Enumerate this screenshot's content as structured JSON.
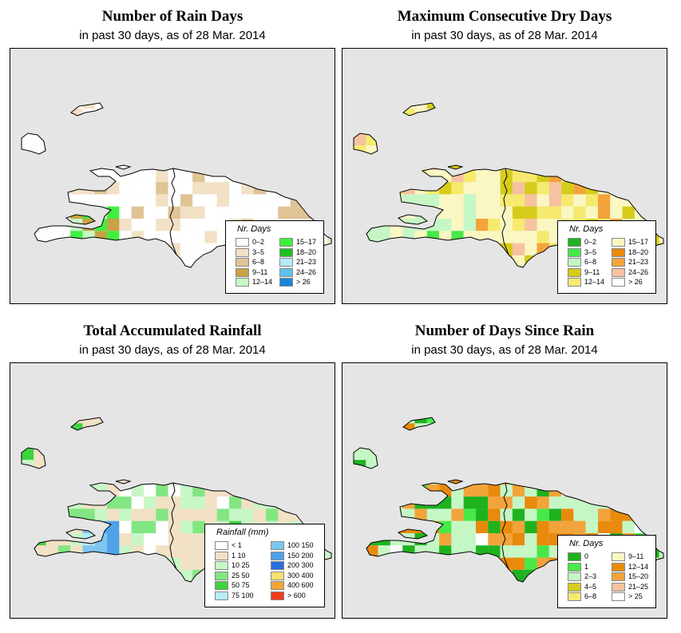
{
  "panels": [
    {
      "title": "Number of Rain Days",
      "subtitle": "in past 30 days, as of  28 Mar. 2014",
      "legend": {
        "title": "Nr. Days",
        "cols": 2,
        "items": [
          {
            "label": "0–2",
            "color": "#ffffff"
          },
          {
            "label": "3–5",
            "color": "#f2e1c5"
          },
          {
            "label": "6–8",
            "color": "#e0c495"
          },
          {
            "label": "9–11",
            "color": "#c9a245"
          },
          {
            "label": "12–14",
            "color": "#c7f7c7"
          },
          {
            "label": "15–17",
            "color": "#3ff03f"
          },
          {
            "label": "18–20",
            "color": "#1fbf1f"
          },
          {
            "label": "21–23",
            "color": "#b3ecf7"
          },
          {
            "label": "24–26",
            "color": "#5ec2ee"
          },
          {
            "label": "> 26",
            "color": "#1a86d6"
          }
        ]
      }
    },
    {
      "title": "Maximum Consecutive Dry Days",
      "subtitle": "in past 30 days, as of  28 Mar. 2014",
      "legend": {
        "title": "Nr. Days",
        "cols": 2,
        "items": [
          {
            "label": "0–2",
            "color": "#1fb21f"
          },
          {
            "label": "3–5",
            "color": "#48e848"
          },
          {
            "label": "6–8",
            "color": "#c5f7c5"
          },
          {
            "label": "9–11",
            "color": "#d6cc1a"
          },
          {
            "label": "12–14",
            "color": "#f6ea6e"
          },
          {
            "label": "15–17",
            "color": "#fbf7c2"
          },
          {
            "label": "18–20",
            "color": "#e88a0b"
          },
          {
            "label": "21–23",
            "color": "#f2a43a"
          },
          {
            "label": "24–26",
            "color": "#f7c2a0"
          },
          {
            "label": "> 26",
            "color": "#ffffff"
          }
        ]
      }
    },
    {
      "title": "Total Accumulated Rainfall",
      "subtitle": "in past 30 days, as of  28 Mar. 2014",
      "legend": {
        "title": "Rainfall (mm)",
        "cols": 2,
        "items": [
          {
            "label": "< 1",
            "color": "#ffffff"
          },
          {
            "label": "1     10",
            "color": "#f2e1c5"
          },
          {
            "label": "10    25",
            "color": "#c7f7c7"
          },
          {
            "label": "25    50",
            "color": "#82e682"
          },
          {
            "label": "50    75",
            "color": "#3fd23f"
          },
          {
            "label": "75   100",
            "color": "#b7ecf7"
          },
          {
            "label": "100   150",
            "color": "#7ec6ef"
          },
          {
            "label": "150   200",
            "color": "#4da2e8"
          },
          {
            "label": "200   300",
            "color": "#2a6ee0"
          },
          {
            "label": "300   400",
            "color": "#f7e06e"
          },
          {
            "label": "400   600",
            "color": "#f2a43a"
          },
          {
            "label": "> 600",
            "color": "#f23a1a"
          }
        ]
      }
    },
    {
      "title": "Number of Days Since Rain",
      "subtitle": "in past 30 days, as of  28 Mar. 2014",
      "legend": {
        "title": "Nr. Days",
        "cols": 2,
        "items": [
          {
            "label": "0",
            "color": "#1fb21f"
          },
          {
            "label": "1",
            "color": "#48e848"
          },
          {
            "label": "2–3",
            "color": "#c5f7c5"
          },
          {
            "label": "4–5",
            "color": "#d6cc1a"
          },
          {
            "label": "6–8",
            "color": "#f6ea6e"
          },
          {
            "label": "9–11",
            "color": "#fbf7c2"
          },
          {
            "label": "12–14",
            "color": "#e88a0b"
          },
          {
            "label": "15–20",
            "color": "#f2a43a"
          },
          {
            "label": "21–25",
            "color": "#f7c2a0"
          },
          {
            "label": "> 25",
            "color": "#ffffff"
          }
        ]
      }
    }
  ],
  "grids": [
    {
      "base": "#ffffff",
      "cells": [
        [
          4,
          1,
          1
        ],
        [
          4,
          2,
          1
        ],
        [
          0,
          2,
          1
        ],
        [
          0,
          3,
          1
        ],
        [
          14,
          5,
          1
        ],
        [
          14,
          6,
          1
        ],
        [
          14,
          7,
          1
        ],
        [
          15,
          6,
          1
        ],
        [
          16,
          6,
          1
        ],
        [
          16,
          7,
          1
        ],
        [
          17,
          6,
          1
        ],
        [
          17,
          7,
          1
        ],
        [
          19,
          7,
          1
        ],
        [
          19,
          8,
          1
        ],
        [
          20,
          8,
          1
        ],
        [
          21,
          8,
          1
        ],
        [
          18,
          8,
          1
        ],
        [
          13,
          8,
          1
        ],
        [
          11,
          8,
          1
        ],
        [
          11,
          9,
          1
        ],
        [
          10,
          9,
          1
        ],
        [
          12,
          9,
          1
        ],
        [
          8,
          10,
          1
        ],
        [
          8,
          11,
          1
        ],
        [
          7,
          10,
          1
        ],
        [
          4,
          9,
          3
        ],
        [
          4,
          10,
          3
        ],
        [
          5,
          9,
          3
        ],
        [
          5,
          10,
          3
        ],
        [
          6,
          9,
          6
        ],
        [
          6,
          10,
          7
        ],
        [
          5,
          11,
          1
        ],
        [
          6,
          11,
          1
        ],
        [
          7,
          11,
          1
        ],
        [
          3,
          11,
          1
        ],
        [
          9,
          11,
          1
        ],
        [
          10,
          11,
          1
        ],
        [
          11,
          11,
          1
        ],
        [
          9,
          12,
          1
        ],
        [
          10,
          13,
          1
        ],
        [
          10,
          14,
          1
        ],
        [
          11,
          13,
          1
        ],
        [
          2,
          12,
          1
        ],
        [
          3,
          12,
          1
        ],
        [
          7,
          9,
          1
        ],
        [
          9,
          9,
          1
        ],
        [
          12,
          8,
          1
        ],
        [
          15,
          8,
          1
        ],
        [
          16,
          8,
          1
        ]
      ]
    },
    {
      "base": "#fbf7c2",
      "cells": [
        [
          26,
          0,
          6
        ],
        [
          26,
          1,
          6
        ],
        [
          24,
          1,
          6
        ],
        [
          25,
          1,
          6
        ],
        [
          26,
          2,
          6
        ],
        [
          21,
          2,
          5
        ],
        [
          21,
          3,
          5
        ],
        [
          22,
          3,
          5
        ],
        [
          22,
          4,
          3
        ],
        [
          22,
          5,
          4
        ],
        [
          24,
          4,
          3
        ],
        [
          25,
          4,
          8
        ],
        [
          26,
          4,
          8
        ],
        [
          27,
          4,
          8
        ],
        [
          28,
          4,
          8
        ],
        [
          29,
          4,
          8
        ],
        [
          30,
          4,
          4
        ],
        [
          31,
          4,
          4
        ],
        [
          32,
          4,
          8
        ],
        [
          33,
          4,
          4
        ],
        [
          34,
          4,
          4
        ],
        [
          35,
          4,
          4
        ],
        [
          36,
          5,
          8
        ],
        [
          37,
          5,
          8
        ],
        [
          38,
          5,
          6
        ],
        [
          39,
          5,
          4
        ],
        [
          39,
          6,
          4
        ],
        [
          40,
          6,
          6
        ],
        [
          40,
          7,
          6
        ],
        [
          40,
          8,
          3
        ],
        [
          40,
          9,
          6
        ],
        [
          39,
          9,
          4
        ],
        [
          38,
          9,
          6
        ],
        [
          37,
          9,
          6
        ],
        [
          37,
          8,
          4
        ],
        [
          36,
          8,
          6
        ],
        [
          35,
          8,
          8
        ],
        [
          34,
          8,
          4
        ],
        [
          34,
          7,
          3
        ],
        [
          33,
          7,
          3
        ],
        [
          33,
          6,
          3
        ],
        [
          32,
          6,
          3
        ],
        [
          31,
          6,
          3
        ],
        [
          30,
          6,
          4
        ],
        [
          30,
          7,
          4
        ],
        [
          31,
          7,
          3
        ],
        [
          32,
          7,
          3
        ],
        [
          32,
          8,
          3
        ],
        [
          33,
          8,
          3
        ],
        [
          29,
          8,
          4
        ],
        [
          29,
          9,
          4
        ],
        [
          28,
          9,
          4
        ],
        [
          28,
          10,
          6
        ],
        [
          27,
          10,
          4
        ],
        [
          27,
          11,
          4
        ],
        [
          26,
          11,
          4
        ],
        [
          25,
          11,
          4
        ],
        [
          25,
          12,
          4
        ],
        [
          26,
          12,
          4
        ],
        [
          27,
          12,
          6
        ],
        [
          28,
          12,
          6
        ],
        [
          29,
          12,
          4
        ],
        [
          30,
          12,
          6
        ],
        [
          31,
          12,
          4
        ],
        [
          32,
          12,
          5
        ],
        [
          33,
          12,
          4
        ],
        [
          34,
          12,
          6
        ],
        [
          35,
          12,
          6
        ],
        [
          36,
          12,
          6
        ],
        [
          37,
          12,
          4
        ],
        [
          38,
          12,
          6
        ],
        [
          39,
          12,
          4
        ],
        [
          40,
          12,
          6
        ],
        [
          41,
          12,
          5
        ],
        [
          40,
          13,
          6
        ],
        [
          39,
          13,
          6
        ],
        [
          38,
          13,
          6
        ],
        [
          37,
          13,
          6
        ],
        [
          36,
          13,
          6
        ],
        [
          35,
          13,
          6
        ],
        [
          34,
          13,
          6
        ],
        [
          33,
          13,
          6
        ],
        [
          32,
          13,
          6
        ],
        [
          31,
          13,
          6
        ],
        [
          30,
          13,
          6
        ],
        [
          29,
          13,
          6
        ],
        [
          28,
          13,
          6
        ],
        [
          27,
          13,
          6
        ],
        [
          26,
          13,
          6
        ],
        [
          25,
          13,
          6
        ],
        [
          24,
          13,
          6
        ],
        [
          23,
          13,
          6
        ],
        [
          22,
          13,
          6
        ],
        [
          21,
          13,
          2
        ],
        [
          22,
          11,
          1
        ],
        [
          22,
          12,
          2
        ],
        [
          23,
          12,
          2
        ],
        [
          24,
          12,
          2
        ],
        [
          22,
          10,
          1
        ],
        [
          23,
          10,
          1
        ],
        [
          23,
          9,
          1
        ],
        [
          24,
          9,
          1
        ],
        [
          25,
          9,
          2
        ],
        [
          26,
          9,
          2
        ],
        [
          24,
          10,
          2
        ],
        [
          25,
          10,
          3
        ],
        [
          26,
          10,
          3
        ],
        [
          24,
          11,
          2
        ],
        [
          22,
          9,
          2
        ],
        [
          27,
          7,
          4
        ],
        [
          28,
          7,
          4
        ],
        [
          29,
          7,
          8
        ],
        [
          27,
          6,
          6
        ],
        [
          28,
          6,
          6
        ],
        [
          29,
          6,
          4
        ],
        [
          29,
          5,
          4
        ],
        [
          30,
          5,
          4
        ],
        [
          31,
          5,
          3
        ],
        [
          32,
          5,
          3
        ],
        [
          33,
          5,
          4
        ],
        [
          34,
          5,
          4
        ],
        [
          35,
          5,
          6
        ],
        [
          35,
          6,
          8
        ],
        [
          36,
          6,
          4
        ],
        [
          37,
          6,
          4
        ],
        [
          38,
          6,
          4
        ],
        [
          37,
          7,
          8
        ],
        [
          38,
          7,
          3
        ],
        [
          39,
          7,
          4
        ],
        [
          39,
          8,
          4
        ],
        [
          38,
          8,
          8
        ],
        [
          36,
          7,
          4
        ],
        [
          35,
          7,
          4
        ],
        [
          34,
          6,
          3
        ],
        [
          26,
          5,
          8
        ],
        [
          27,
          5,
          6
        ],
        [
          28,
          5,
          4
        ],
        [
          24,
          6,
          4
        ],
        [
          25,
          6,
          4
        ],
        [
          26,
          6,
          4
        ],
        [
          24,
          7,
          6
        ],
        [
          25,
          7,
          4
        ],
        [
          26,
          7,
          4
        ],
        [
          24,
          8,
          6
        ],
        [
          25,
          8,
          4
        ],
        [
          26,
          8,
          4
        ],
        [
          27,
          8,
          4
        ],
        [
          28,
          8,
          4
        ],
        [
          27,
          9,
          4
        ],
        [
          30,
          8,
          4
        ],
        [
          30,
          9,
          4
        ],
        [
          31,
          9,
          4
        ],
        [
          31,
          10,
          4
        ],
        [
          30,
          10,
          4
        ],
        [
          29,
          10,
          6
        ],
        [
          29,
          11,
          4
        ],
        [
          30,
          11,
          4
        ],
        [
          31,
          11,
          4
        ],
        [
          32,
          11,
          4
        ],
        [
          33,
          11,
          6
        ],
        [
          32,
          10,
          6
        ],
        [
          33,
          10,
          6
        ],
        [
          33,
          9,
          6
        ],
        [
          34,
          9,
          8
        ],
        [
          35,
          9,
          6
        ],
        [
          36,
          9,
          6
        ],
        [
          35,
          10,
          6
        ],
        [
          34,
          10,
          6
        ],
        [
          34,
          11,
          6
        ],
        [
          35,
          11,
          8
        ],
        [
          36,
          11,
          6
        ],
        [
          36,
          10,
          6
        ],
        [
          37,
          10,
          6
        ],
        [
          38,
          10,
          0
        ],
        [
          39,
          10,
          0
        ],
        [
          38,
          11,
          6
        ],
        [
          31,
          14,
          6
        ],
        [
          32,
          14,
          6
        ],
        [
          33,
          14,
          6
        ],
        [
          34,
          14,
          6
        ],
        [
          35,
          14,
          6
        ],
        [
          36,
          14,
          6
        ],
        [
          37,
          14,
          6
        ],
        [
          38,
          14,
          6
        ],
        [
          39,
          14,
          6
        ],
        [
          33,
          15,
          6
        ],
        [
          34,
          15,
          6
        ],
        [
          38,
          15,
          8
        ],
        [
          38,
          16,
          6
        ],
        [
          37,
          17,
          6
        ],
        [
          37,
          18,
          6
        ],
        [
          36,
          18,
          6
        ]
      ]
    },
    {
      "base": "#f2e1c5",
      "cells": []
    },
    {
      "base": "#c5f7c5",
      "cells": []
    }
  ]
}
